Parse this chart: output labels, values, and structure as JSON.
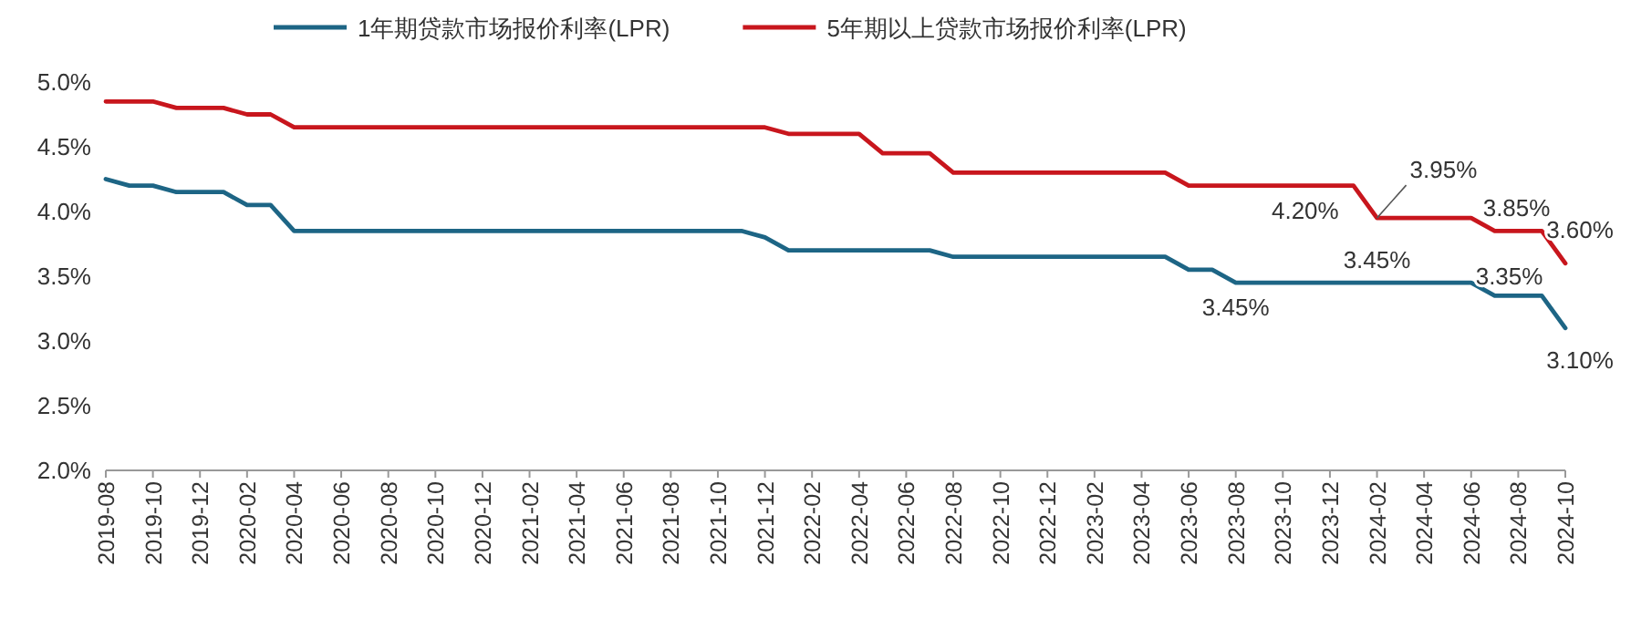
{
  "chart_data": {
    "type": "line",
    "x": [
      "2019-08",
      "2019-09",
      "2019-10",
      "2019-11",
      "2019-12",
      "2020-01",
      "2020-02",
      "2020-03",
      "2020-04",
      "2020-05",
      "2020-06",
      "2020-07",
      "2020-08",
      "2020-09",
      "2020-10",
      "2020-11",
      "2020-12",
      "2021-01",
      "2021-02",
      "2021-03",
      "2021-04",
      "2021-05",
      "2021-06",
      "2021-07",
      "2021-08",
      "2021-09",
      "2021-10",
      "2021-11",
      "2021-12",
      "2022-01",
      "2022-02",
      "2022-03",
      "2022-04",
      "2022-05",
      "2022-06",
      "2022-07",
      "2022-08",
      "2022-09",
      "2022-10",
      "2022-11",
      "2022-12",
      "2023-01",
      "2023-02",
      "2023-03",
      "2023-04",
      "2023-05",
      "2023-06",
      "2023-07",
      "2023-08",
      "2023-09",
      "2023-10",
      "2023-11",
      "2023-12",
      "2024-01",
      "2024-02",
      "2024-03",
      "2024-04",
      "2024-05",
      "2024-06",
      "2024-07",
      "2024-08",
      "2024-09",
      "2024-10"
    ],
    "series": [
      {
        "name": "1年期贷款市场报价利率(LPR)",
        "color": "#1d6585",
        "values": [
          4.25,
          4.2,
          4.2,
          4.15,
          4.15,
          4.15,
          4.05,
          4.05,
          3.85,
          3.85,
          3.85,
          3.85,
          3.85,
          3.85,
          3.85,
          3.85,
          3.85,
          3.85,
          3.85,
          3.85,
          3.85,
          3.85,
          3.85,
          3.85,
          3.85,
          3.85,
          3.85,
          3.85,
          3.8,
          3.7,
          3.7,
          3.7,
          3.7,
          3.7,
          3.7,
          3.7,
          3.65,
          3.65,
          3.65,
          3.65,
          3.65,
          3.65,
          3.65,
          3.65,
          3.65,
          3.65,
          3.55,
          3.55,
          3.45,
          3.45,
          3.45,
          3.45,
          3.45,
          3.45,
          3.45,
          3.45,
          3.45,
          3.45,
          3.45,
          3.35,
          3.35,
          3.35,
          3.1
        ]
      },
      {
        "name": "5年期以上贷款市场报价利率(LPR)",
        "color": "#c8161d",
        "values": [
          4.85,
          4.85,
          4.85,
          4.8,
          4.8,
          4.8,
          4.75,
          4.75,
          4.65,
          4.65,
          4.65,
          4.65,
          4.65,
          4.65,
          4.65,
          4.65,
          4.65,
          4.65,
          4.65,
          4.65,
          4.65,
          4.65,
          4.65,
          4.65,
          4.65,
          4.65,
          4.65,
          4.65,
          4.65,
          4.6,
          4.6,
          4.6,
          4.6,
          4.45,
          4.45,
          4.45,
          4.3,
          4.3,
          4.3,
          4.3,
          4.3,
          4.3,
          4.3,
          4.3,
          4.3,
          4.3,
          4.2,
          4.2,
          4.2,
          4.2,
          4.2,
          4.2,
          4.2,
          4.2,
          3.95,
          3.95,
          3.95,
          3.95,
          3.95,
          3.85,
          3.85,
          3.85,
          3.6
        ]
      }
    ],
    "xlim": [
      "2019-08",
      "2024-10"
    ],
    "xticks": [
      "2019-08",
      "2019-10",
      "2019-12",
      "2020-02",
      "2020-04",
      "2020-06",
      "2020-08",
      "2020-10",
      "2020-12",
      "2021-02",
      "2021-04",
      "2021-06",
      "2021-08",
      "2021-10",
      "2021-12",
      "2022-02",
      "2022-04",
      "2022-06",
      "2022-08",
      "2022-10",
      "2022-12",
      "2023-02",
      "2023-04",
      "2023-06",
      "2023-08",
      "2023-10",
      "2023-12",
      "2024-02",
      "2024-04",
      "2024-06",
      "2024-08",
      "2024-10"
    ],
    "ylim": [
      2.0,
      5.0
    ],
    "yticks": [
      {
        "value": 2.0,
        "label": "2.0%"
      },
      {
        "value": 2.5,
        "label": "2.5%"
      },
      {
        "value": 3.0,
        "label": "3.0%"
      },
      {
        "value": 3.5,
        "label": "3.5%"
      },
      {
        "value": 4.0,
        "label": "4.0%"
      },
      {
        "value": 4.5,
        "label": "4.5%"
      },
      {
        "value": 5.0,
        "label": "5.0%"
      }
    ],
    "legend": "top",
    "annotations": [
      {
        "text": "3.45%",
        "x": "2023-08",
        "y": 3.45
      },
      {
        "text": "4.20%",
        "x": "2024-01",
        "y": 4.2
      },
      {
        "text": "3.45%",
        "x": "2024-02",
        "y": 3.45
      },
      {
        "text": "3.95%",
        "x": "2024-02",
        "y": 3.95
      },
      {
        "text": "3.85%",
        "x": "2024-07",
        "y": 3.85
      },
      {
        "text": "3.35%",
        "x": "2024-07",
        "y": 3.35
      },
      {
        "text": "3.60%",
        "x": "2024-10",
        "y": 3.6
      },
      {
        "text": "3.10%",
        "x": "2024-10",
        "y": 3.1
      }
    ]
  }
}
